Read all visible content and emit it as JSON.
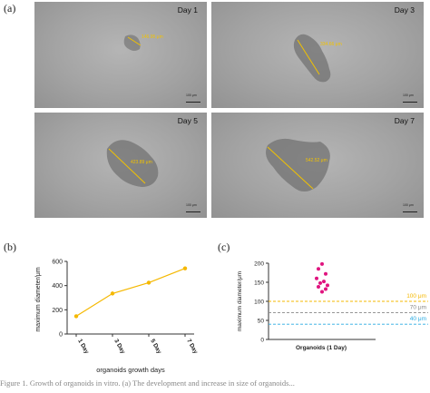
{
  "panel_labels": {
    "a": "(a)",
    "b": "(b)",
    "c": "(c)"
  },
  "micrographs": [
    {
      "day": "Day 1",
      "measure": "146.95 μm",
      "scale": "100 μm"
    },
    {
      "day": "Day 3",
      "measure": "334.66 μm",
      "scale": "100 μm"
    },
    {
      "day": "Day 5",
      "measure": "423.89 μm",
      "scale": "100 μm"
    },
    {
      "day": "Day 7",
      "measure": "542.52 μm",
      "scale": "100 μm"
    }
  ],
  "colors": {
    "line": "#f5b800",
    "points": "#e0147f",
    "measure": "#f2c200"
  },
  "chart_data": [
    {
      "type": "line",
      "categories": [
        "1 Day",
        "3 Day",
        "5 Day",
        "7 Day"
      ],
      "values": [
        146.95,
        334.66,
        423.89,
        542.52
      ],
      "xlabel": "organoids growth days",
      "ylabel": "maximum diameter/μm",
      "ylim": [
        0,
        600
      ],
      "yticks": [
        "0",
        "200",
        "400",
        "600"
      ]
    },
    {
      "type": "scatter",
      "category": "Organoids (1 Day)",
      "values": [
        198,
        185,
        172,
        160,
        152,
        148,
        142,
        138,
        132,
        125
      ],
      "ylabel": "maximum diameter/μm",
      "ylim": [
        0,
        200
      ],
      "yticks": [
        "0",
        "50",
        "100",
        "150",
        "200"
      ],
      "reference_lines": [
        {
          "value": 100,
          "label": "100 μm",
          "color": "#f5b800"
        },
        {
          "value": 70,
          "label": "70 μm",
          "color": "#888888"
        },
        {
          "value": 40,
          "label": "40 μm",
          "color": "#29abe2"
        }
      ]
    }
  ],
  "caption": "Figure 1.  Growth of organoids in vitro. (a) The development and increase in size of organoids..."
}
